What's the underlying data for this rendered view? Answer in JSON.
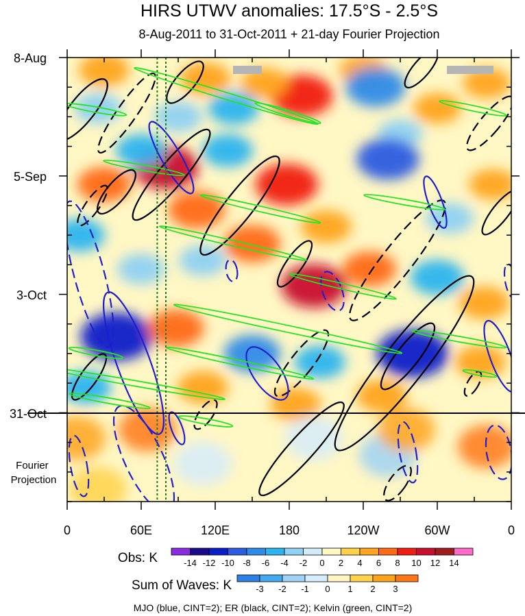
{
  "chart_data": {
    "type": "heatmap",
    "title": "HIRS UTWV anomalies: 17.5°S - 2.5°S",
    "subtitle": "8-Aug-2011 to 31-Oct-2011 + 21-day Fourier Projection",
    "x_axis": {
      "ticks": [
        "0",
        "60E",
        "120E",
        "180",
        "120W",
        "60W",
        "0"
      ],
      "tick_values": [
        0,
        60,
        120,
        180,
        240,
        300,
        360
      ],
      "range": [
        0,
        360
      ],
      "units": "degrees longitude east"
    },
    "y_axis": {
      "ticks": [
        "8-Aug",
        "5-Sep",
        "3-Oct",
        "31-Oct"
      ],
      "tick_days": [
        0,
        28,
        56,
        84
      ],
      "range_days": [
        0,
        105
      ],
      "direction": "time increases downward",
      "projection_label": "Fourier\nProjection",
      "projection_start_day": 84
    },
    "vertical_reference_lines_deg": [
      73,
      80
    ],
    "obs_colorbar": {
      "label": "Obs: K",
      "labels": [
        "-14",
        "-12",
        "-10",
        "-8",
        "-6",
        "-4",
        "-2",
        "0",
        "2",
        "4",
        "6",
        "8",
        "10",
        "12",
        "14"
      ],
      "levels": [
        -14,
        -12,
        -10,
        -8,
        -6,
        -4,
        -2,
        0,
        2,
        4,
        6,
        8,
        10,
        12,
        14
      ],
      "colors": [
        "#8a2be2",
        "#1a0a8c",
        "#0a1ec8",
        "#2a5de0",
        "#2f8be8",
        "#2cb4ef",
        "#8fd1f2",
        "#d2ecf8",
        "#fff7c4",
        "#ffd24a",
        "#ffa41c",
        "#ff6a14",
        "#f01d10",
        "#c8102e",
        "#a01c1c",
        "#ff69c8"
      ]
    },
    "waves_colorbar": {
      "label": "Sum of Waves: K",
      "labels": [
        "-3",
        "-2",
        "-1",
        "0",
        "1",
        "2",
        "3"
      ],
      "levels": [
        -3,
        -2,
        -1,
        0,
        1,
        2,
        3
      ],
      "colors": [
        "#2e7fe6",
        "#43aaf0",
        "#9fd2f4",
        "#d6ecfa",
        "#fff4c2",
        "#ffd24a",
        "#ffa41c",
        "#ff7818"
      ]
    },
    "overlay_legend": "MJO (blue, CINT=2); ER (black, CINT=2); Kelvin (green, CINT=2)",
    "series": [
      {
        "name": "MJO",
        "color": "#1f1fcf",
        "contour_interval": 2
      },
      {
        "name": "ER",
        "color": "#000000",
        "contour_interval": 2
      },
      {
        "name": "Kelvin",
        "color": "#22e622",
        "contour_interval": 2
      }
    ],
    "anomaly_patches": [
      {
        "lon": 112,
        "day": 5,
        "value": 5
      },
      {
        "lon": 30,
        "day": 3,
        "value": 5
      },
      {
        "lon": 240,
        "day": 3,
        "value": 4
      },
      {
        "lon": 300,
        "day": 12,
        "value": 4
      },
      {
        "lon": 340,
        "day": 6,
        "value": 4
      },
      {
        "lon": 190,
        "day": 9,
        "value": 9
      },
      {
        "lon": 160,
        "day": 6,
        "value": 4
      },
      {
        "lon": 25,
        "day": 12,
        "value": -4
      },
      {
        "lon": 90,
        "day": 14,
        "value": -4
      },
      {
        "lon": 135,
        "day": 12,
        "value": -5
      },
      {
        "lon": 250,
        "day": 7,
        "value": -8
      },
      {
        "lon": 270,
        "day": 18,
        "value": -3
      },
      {
        "lon": 80,
        "day": 26,
        "value": 10
      },
      {
        "lon": 178,
        "day": 30,
        "value": 9
      },
      {
        "lon": 210,
        "day": 40,
        "value": 5
      },
      {
        "lon": 105,
        "day": 36,
        "value": 7
      },
      {
        "lon": 30,
        "day": 30,
        "value": 6
      },
      {
        "lon": 60,
        "day": 22,
        "value": -5
      },
      {
        "lon": 130,
        "day": 22,
        "value": -5
      },
      {
        "lon": 260,
        "day": 24,
        "value": -9
      },
      {
        "lon": 310,
        "day": 38,
        "value": -4
      },
      {
        "lon": 345,
        "day": 30,
        "value": 4
      },
      {
        "lon": 10,
        "day": 42,
        "value": -5
      },
      {
        "lon": 200,
        "day": 54,
        "value": 10
      },
      {
        "lon": 150,
        "day": 44,
        "value": 7
      },
      {
        "lon": 245,
        "day": 50,
        "value": 6
      },
      {
        "lon": 60,
        "day": 50,
        "value": -4
      },
      {
        "lon": 300,
        "day": 52,
        "value": -6
      },
      {
        "lon": 338,
        "day": 58,
        "value": 5
      },
      {
        "lon": 110,
        "day": 48,
        "value": -4
      },
      {
        "lon": 40,
        "day": 66,
        "value": -12
      },
      {
        "lon": 88,
        "day": 64,
        "value": 7
      },
      {
        "lon": 150,
        "day": 70,
        "value": -7
      },
      {
        "lon": 205,
        "day": 72,
        "value": -5
      },
      {
        "lon": 280,
        "day": 70,
        "value": -12
      },
      {
        "lon": 255,
        "day": 80,
        "value": 5
      },
      {
        "lon": 335,
        "day": 72,
        "value": 5
      },
      {
        "lon": 185,
        "day": 82,
        "value": 5
      },
      {
        "lon": 110,
        "day": 78,
        "value": 5
      },
      {
        "lon": 15,
        "day": 78,
        "value": -5
      },
      {
        "lon": 8,
        "day": 90,
        "value": 2
      },
      {
        "lon": 65,
        "day": 88,
        "value": 3
      },
      {
        "lon": 110,
        "day": 96,
        "value": -1
      },
      {
        "lon": 200,
        "day": 90,
        "value": -1
      },
      {
        "lon": 260,
        "day": 94,
        "value": -2
      },
      {
        "lon": 275,
        "day": 88,
        "value": 2
      },
      {
        "lon": 340,
        "day": 92,
        "value": 3
      },
      {
        "lon": 25,
        "day": 102,
        "value": 1
      }
    ]
  }
}
